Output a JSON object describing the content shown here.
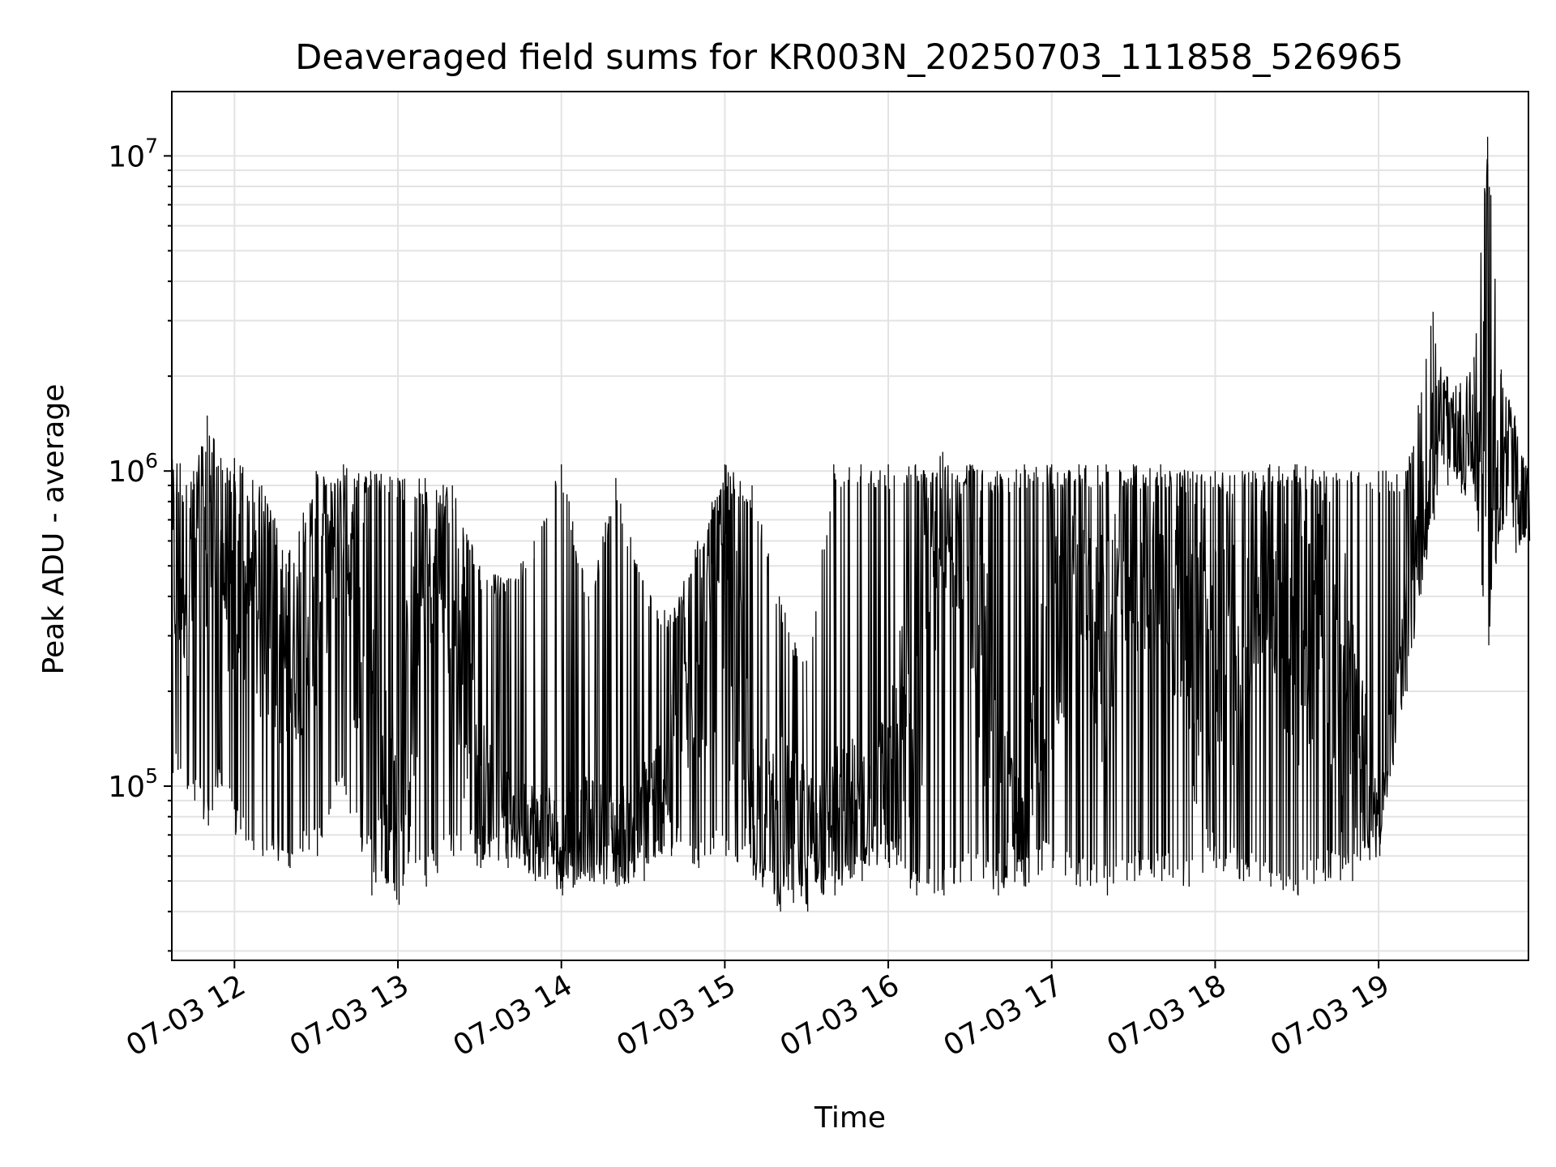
{
  "chart_data": {
    "type": "line",
    "title": "Deaveraged field sums for KR003N_20250703_111858_526965",
    "xlabel": "Time",
    "ylabel": "Peak ADU - average",
    "yscale": "log",
    "ylim": [
      28000,
      16000000
    ],
    "xlim": [
      "2025-07-03 11:37",
      "2025-07-03 19:55"
    ],
    "grid": true,
    "x_tick_labels": [
      "07-03 12",
      "07-03 13",
      "07-03 14",
      "07-03 15",
      "07-03 16",
      "07-03 17",
      "07-03 18",
      "07-03 19"
    ],
    "y_tick_labels": [
      {
        "base": "10",
        "exp": "5"
      },
      {
        "base": "10",
        "exp": "6"
      },
      {
        "base": "10",
        "exp": "7"
      }
    ],
    "series": [
      {
        "color": "#000000",
        "x": [
          "2025-07-03 11:37",
          "2025-07-03 11:45",
          "2025-07-03 11:50",
          "2025-07-03 11:55",
          "2025-07-03 12:00",
          "2025-07-03 12:10",
          "2025-07-03 12:20",
          "2025-07-03 12:30",
          "2025-07-03 12:40",
          "2025-07-03 12:50",
          "2025-07-03 13:00",
          "2025-07-03 13:10",
          "2025-07-03 13:20",
          "2025-07-03 13:30",
          "2025-07-03 13:40",
          "2025-07-03 13:50",
          "2025-07-03 14:00",
          "2025-07-03 14:10",
          "2025-07-03 14:20",
          "2025-07-03 14:30",
          "2025-07-03 14:40",
          "2025-07-03 14:50",
          "2025-07-03 15:00",
          "2025-07-03 15:10",
          "2025-07-03 15:20",
          "2025-07-03 15:30",
          "2025-07-03 15:40",
          "2025-07-03 15:50",
          "2025-07-03 16:00",
          "2025-07-03 16:10",
          "2025-07-03 16:20",
          "2025-07-03 16:30",
          "2025-07-03 16:40",
          "2025-07-03 16:50",
          "2025-07-03 17:00",
          "2025-07-03 17:10",
          "2025-07-03 17:20",
          "2025-07-03 17:30",
          "2025-07-03 17:40",
          "2025-07-03 17:50",
          "2025-07-03 18:00",
          "2025-07-03 18:10",
          "2025-07-03 18:20",
          "2025-07-03 18:30",
          "2025-07-03 18:40",
          "2025-07-03 18:50",
          "2025-07-03 19:00",
          "2025-07-03 19:10",
          "2025-07-03 19:20",
          "2025-07-03 19:25",
          "2025-07-03 19:30",
          "2025-07-03 19:35",
          "2025-07-03 19:40",
          "2025-07-03 19:45",
          "2025-07-03 19:50",
          "2025-07-03 19:55"
        ],
        "high": [
          1200000,
          1000000,
          1500000,
          1100000,
          1100000,
          900000,
          550000,
          1000000,
          1050000,
          1000000,
          950000,
          950000,
          900000,
          500000,
          450000,
          600000,
          1050000,
          400000,
          950000,
          450000,
          350000,
          600000,
          1050000,
          900000,
          400000,
          250000,
          1050000,
          1050000,
          1050000,
          1050000,
          1150000,
          1050000,
          1000000,
          1050000,
          1050000,
          1050000,
          1050000,
          1050000,
          1050000,
          1000000,
          1000000,
          1000000,
          1050000,
          1050000,
          1000000,
          1000000,
          1000000,
          1000000,
          3200000,
          2000000,
          1900000,
          2300000,
          11500000,
          2100000,
          1500000,
          1100000
        ],
        "low": [
          110000,
          90000,
          75000,
          100000,
          70000,
          60000,
          55000,
          60000,
          100000,
          45000,
          42000,
          48000,
          60000,
          55000,
          55000,
          50000,
          45000,
          50000,
          48000,
          50000,
          60000,
          55000,
          60000,
          52000,
          40000,
          40000,
          45000,
          50000,
          55000,
          45000,
          45000,
          50000,
          45000,
          48000,
          55000,
          48000,
          45000,
          50000,
          50000,
          48000,
          55000,
          50000,
          48000,
          45000,
          50000,
          50000,
          60000,
          200000,
          700000,
          900000,
          850000,
          800000,
          280000,
          650000,
          550000,
          600000
        ],
        "mid": [
          500000,
          450000,
          600000,
          500000,
          450000,
          350000,
          250000,
          400000,
          700000,
          150000,
          80000,
          500000,
          400000,
          100000,
          80000,
          75000,
          70000,
          75000,
          70000,
          80000,
          110000,
          250000,
          400000,
          90000,
          80000,
          70000,
          80000,
          90000,
          100000,
          200000,
          700000,
          500000,
          100000,
          70000,
          300000,
          500000,
          300000,
          500000,
          500000,
          300000,
          200000,
          350000,
          500000,
          300000,
          400000,
          150000,
          80000,
          300000,
          1200000,
          1400000,
          1300000,
          1200000,
          1100000,
          1000000,
          900000,
          800000
        ]
      }
    ]
  }
}
